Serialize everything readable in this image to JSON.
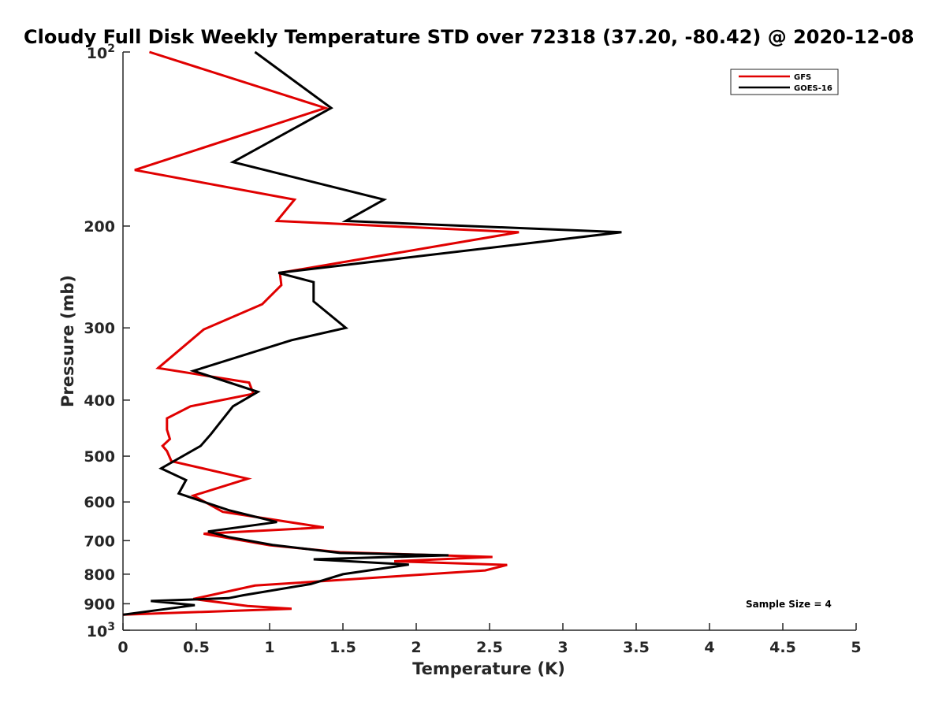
{
  "chart_data": {
    "type": "line",
    "title": "Cloudy Full Disk Weekly Temperature STD over 72318 (37.20, -80.42) @ 2020-12-08",
    "xlabel": "Temperature (K)",
    "ylabel": "Pressure (mb)",
    "xlim": [
      0,
      5
    ],
    "ylim": [
      100,
      1000
    ],
    "yscale": "log",
    "y_reversed": true,
    "x_ticks": [
      0,
      0.5,
      1,
      1.5,
      2,
      2.5,
      3,
      3.5,
      4,
      4.5,
      5
    ],
    "x_tick_labels": [
      "0",
      "0.5",
      "1",
      "1.5",
      "2",
      "2.5",
      "3",
      "3.5",
      "4",
      "4.5",
      "5"
    ],
    "y_ticks": [
      200,
      300,
      400,
      500,
      600,
      700,
      800,
      900
    ],
    "y_tick_labels": [
      "200",
      "300",
      "400",
      "500",
      "600",
      "700",
      "800",
      "900"
    ],
    "y_decade_ticks": [
      {
        "value": 100,
        "base": "10",
        "exp": "2"
      },
      {
        "value": 1000,
        "base": "10",
        "exp": "3"
      }
    ],
    "legend": {
      "position": "top-right",
      "entries": [
        "GFS",
        "GOES-16"
      ]
    },
    "annotation": "Sample Size = 4",
    "series": [
      {
        "name": "GFS",
        "color": "#e00000",
        "x": [
          0.18,
          1.38,
          0.08,
          1.17,
          1.05,
          2.7,
          1.07,
          1.08,
          0.95,
          0.55,
          0.24,
          0.86,
          0.89,
          0.46,
          0.3,
          0.3,
          0.32,
          0.27,
          0.3,
          0.33,
          0.85,
          0.48,
          0.68,
          1.37,
          0.55,
          1.0,
          1.48,
          2.52,
          1.85,
          2.62,
          2.47,
          0.9,
          0.48,
          0.85,
          1.15,
          0.0
        ],
        "y": [
          100,
          125,
          160,
          180,
          196,
          205,
          241,
          253,
          273,
          302,
          352,
          373,
          390,
          410,
          430,
          450,
          467,
          480,
          490,
          510,
          547,
          585,
          624,
          664,
          681,
          713,
          733,
          747,
          760,
          771,
          788,
          837,
          883,
          908,
          918,
          940
        ]
      },
      {
        "name": "GOES-16",
        "color": "#000000",
        "x": [
          0.9,
          1.42,
          0.75,
          1.78,
          1.52,
          3.4,
          1.06,
          1.3,
          1.3,
          1.52,
          1.15,
          0.48,
          0.92,
          0.75,
          0.66,
          0.6,
          0.53,
          0.26,
          0.43,
          0.38,
          0.72,
          1.05,
          0.58,
          0.72,
          1.02,
          1.48,
          2.22,
          1.3,
          1.95,
          1.5,
          1.28,
          0.82,
          0.72,
          0.19,
          0.49,
          0.0
        ],
        "y": [
          100,
          125,
          155,
          180,
          196,
          205,
          241,
          250,
          270,
          300,
          315,
          356,
          387,
          410,
          438,
          458,
          480,
          525,
          550,
          580,
          620,
          650,
          675,
          690,
          712,
          735,
          742,
          754,
          770,
          800,
          832,
          870,
          880,
          890,
          905,
          940
        ]
      }
    ]
  }
}
